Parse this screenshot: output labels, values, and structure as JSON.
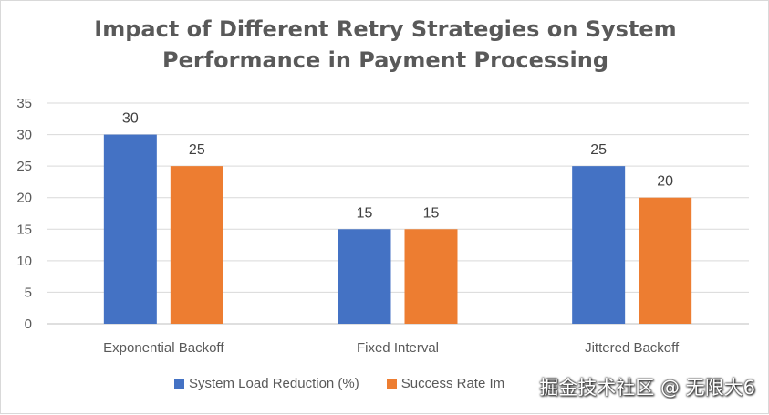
{
  "chart_data": {
    "type": "bar",
    "title_lines": [
      "Impact of Different Retry Strategies on System",
      "Performance in Payment Processing"
    ],
    "categories": [
      "Exponential Backoff",
      "Fixed Interval",
      "Jittered Backoff"
    ],
    "series": [
      {
        "name": "System Load Reduction (%)",
        "values": [
          30,
          15,
          25
        ],
        "color": "#4472C4"
      },
      {
        "name": "Success Rate Im",
        "values": [
          25,
          15,
          20
        ],
        "color": "#ED7D31"
      }
    ],
    "ylim": [
      0,
      35
    ],
    "yticks": [
      0,
      5,
      10,
      15,
      20,
      25,
      30,
      35
    ],
    "grid": true,
    "legend_position": "bottom"
  },
  "watermark": "掘金技术社区 @ 无限大6"
}
